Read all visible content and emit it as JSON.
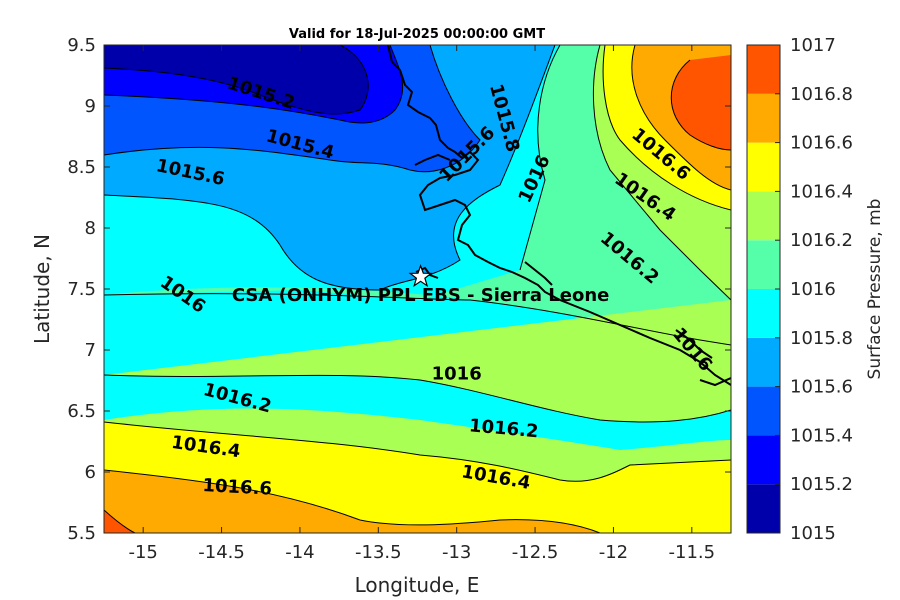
{
  "chart_data": {
    "type": "contour",
    "title": "Valid for 18-Jul-2025 00:00:00 GMT",
    "xlabel": "Longitude, E",
    "ylabel": "Latitude, N",
    "xlim": [
      -15.25,
      -11.25
    ],
    "ylim": [
      5.5,
      9.5
    ],
    "xticks": [
      "-15",
      "-14.5",
      "-14",
      "-13.5",
      "-13",
      "-12.5",
      "-12",
      "-11.5"
    ],
    "xtick_values": [
      -15,
      -14.5,
      -14,
      -13.5,
      -13,
      -12.5,
      -12,
      -11.5
    ],
    "yticks": [
      "5.5",
      "6",
      "6.5",
      "7",
      "7.5",
      "8",
      "8.5",
      "9",
      "9.5"
    ],
    "ytick_values": [
      5.5,
      6,
      6.5,
      7,
      7.5,
      8,
      8.5,
      9,
      9.5
    ],
    "colorbar": {
      "label": "Surface Pressure, mb",
      "levels": [
        1015,
        1015.2,
        1015.4,
        1015.6,
        1015.8,
        1016,
        1016.2,
        1016.4,
        1016.6,
        1016.8,
        1017
      ],
      "tick_labels": [
        "1015",
        "1015.2",
        "1015.4",
        "1015.6",
        "1015.8",
        "1016",
        "1016.2",
        "1016.4",
        "1016.6",
        "1016.8",
        "1017"
      ],
      "colors": [
        "#0000aa",
        "#0000ff",
        "#0055ff",
        "#00aaff",
        "#00ffff",
        "#55ffaa",
        "#aaff55",
        "#ffff00",
        "#ffaa00",
        "#ff5500",
        "#ff0000"
      ]
    },
    "contour_labels": [
      {
        "text": "1015.2",
        "lon": -14.25,
        "lat": 9.1,
        "angle": 18
      },
      {
        "text": "1015.4",
        "lon": -14.0,
        "lat": 8.68,
        "angle": 15
      },
      {
        "text": "1015.6",
        "lon": -14.7,
        "lat": 8.45,
        "angle": 12
      },
      {
        "text": "1015.8",
        "lon": -12.7,
        "lat": 8.9,
        "angle": 75
      },
      {
        "text": "1015.6",
        "lon": -12.93,
        "lat": 8.6,
        "angle": -45
      },
      {
        "text": "1016",
        "lon": -12.5,
        "lat": 8.4,
        "angle": -65
      },
      {
        "text": "1016",
        "lon": -14.75,
        "lat": 7.45,
        "angle": 35
      },
      {
        "text": "1016",
        "lon": -13.0,
        "lat": 6.8,
        "angle": 0
      },
      {
        "text": "1016.2",
        "lon": -14.4,
        "lat": 6.6,
        "angle": 15
      },
      {
        "text": "1016.2",
        "lon": -12.7,
        "lat": 6.35,
        "angle": 5
      },
      {
        "text": "1016.4",
        "lon": -14.6,
        "lat": 6.2,
        "angle": 8
      },
      {
        "text": "1016.4",
        "lon": -12.75,
        "lat": 5.95,
        "angle": 10
      },
      {
        "text": "1016.6",
        "lon": -14.4,
        "lat": 5.87,
        "angle": 3
      },
      {
        "text": "1016.6",
        "lon": -11.7,
        "lat": 8.6,
        "angle": 40
      },
      {
        "text": "1016.4",
        "lon": -11.8,
        "lat": 8.25,
        "angle": 35
      },
      {
        "text": "1016.2",
        "lon": -11.9,
        "lat": 7.75,
        "angle": 40
      },
      {
        "text": "1016",
        "lon": -11.5,
        "lat": 7.0,
        "angle": 50
      }
    ],
    "annotation": {
      "text": "CSA (ONHYM) PPL EBS  - Sierra Leone",
      "lon": -13.23,
      "lat": 7.6,
      "marker": "star"
    }
  }
}
